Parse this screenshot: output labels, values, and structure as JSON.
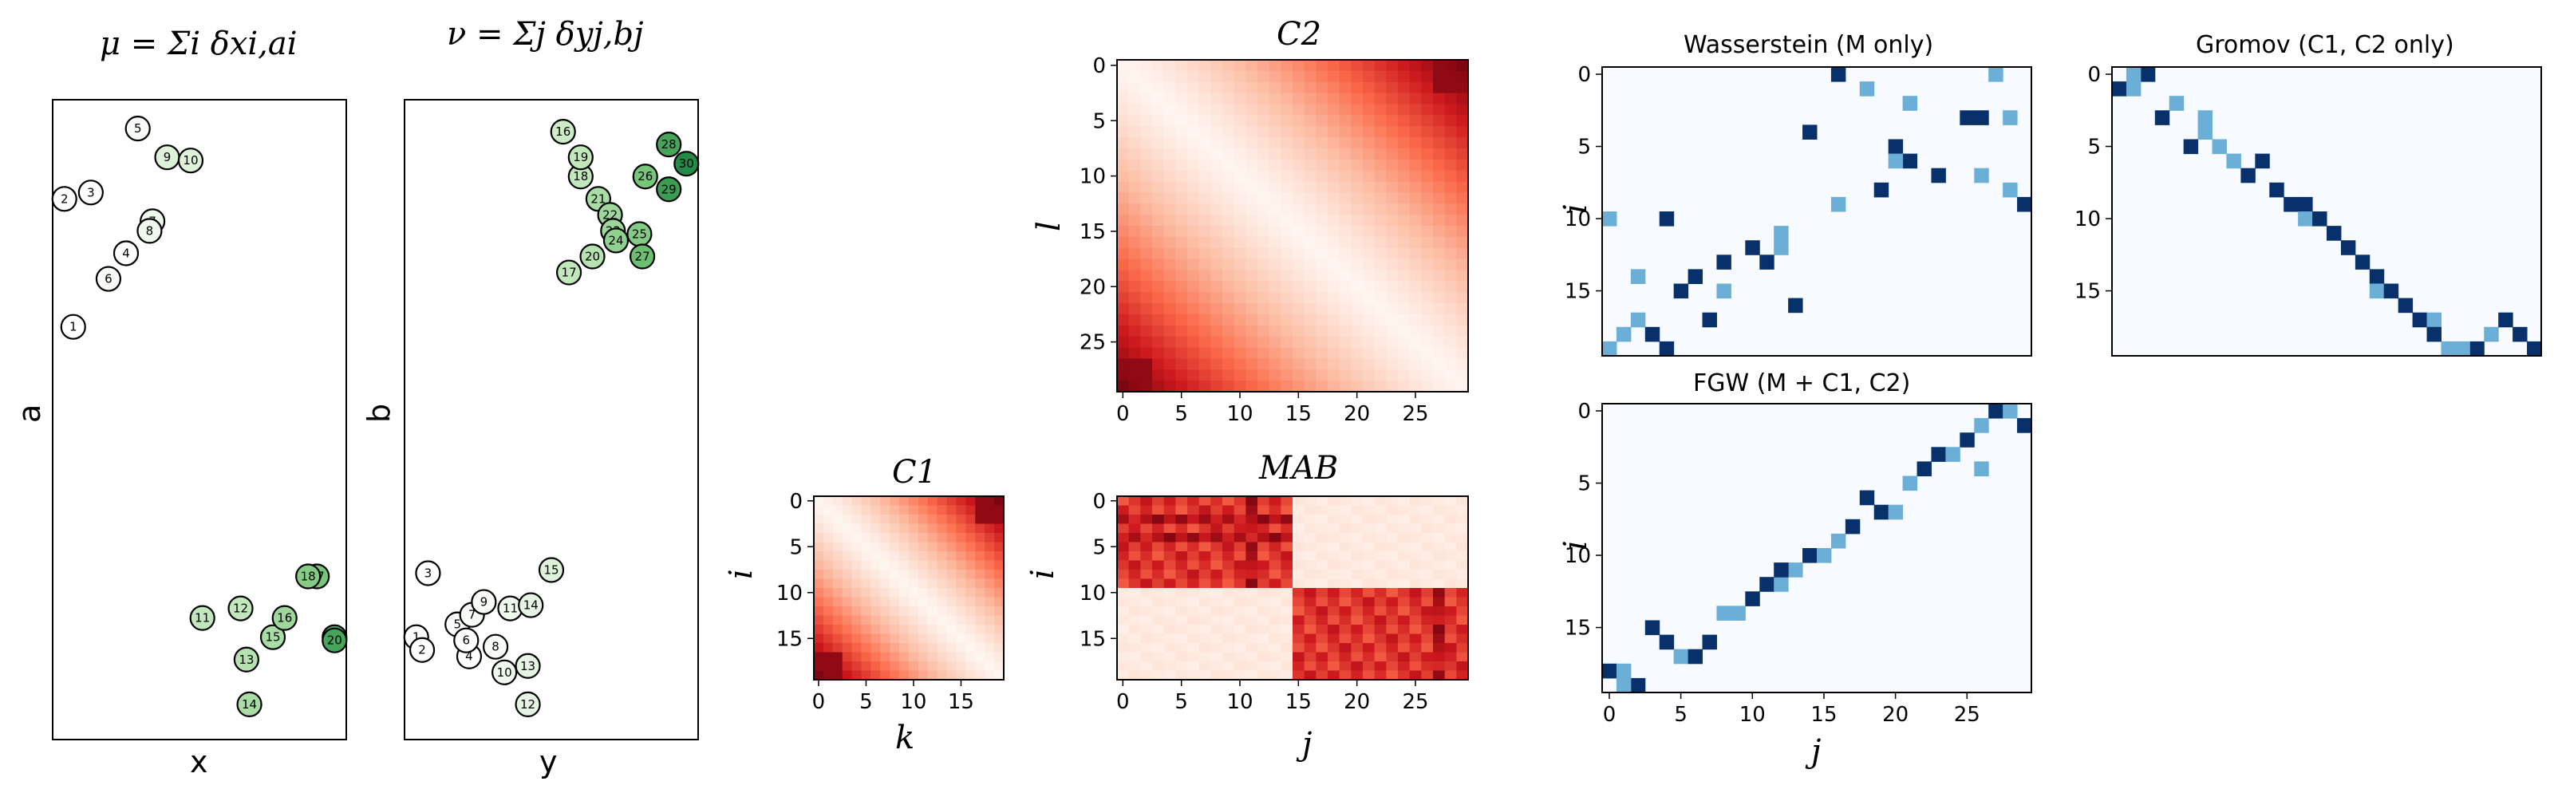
{
  "chart_data": [
    {
      "id": "mu",
      "type": "scatter",
      "title": "μ = Σi δxi,ai",
      "xlabel": "x",
      "ylabel": "a",
      "xlim": [
        0,
        10
      ],
      "ylim": [
        0,
        20
      ],
      "points": [
        {
          "label": "1",
          "x": 0.7,
          "y": 12.9,
          "shade": 0.0
        },
        {
          "label": "2",
          "x": 0.4,
          "y": 16.9,
          "shade": 0.0
        },
        {
          "label": "3",
          "x": 1.3,
          "y": 17.1,
          "shade": 0.0
        },
        {
          "label": "4",
          "x": 2.5,
          "y": 15.2,
          "shade": 0.0
        },
        {
          "label": "5",
          "x": 2.9,
          "y": 19.1,
          "shade": 0.05
        },
        {
          "label": "6",
          "x": 1.9,
          "y": 14.4,
          "shade": 0.05
        },
        {
          "label": "7",
          "x": 3.4,
          "y": 16.2,
          "shade": 0.1
        },
        {
          "label": "8",
          "x": 3.3,
          "y": 15.9,
          "shade": 0.1
        },
        {
          "label": "9",
          "x": 3.9,
          "y": 18.2,
          "shade": 0.2
        },
        {
          "label": "10",
          "x": 4.7,
          "y": 18.1,
          "shade": 0.2
        },
        {
          "label": "11",
          "x": 5.1,
          "y": 3.8,
          "shade": 0.35
        },
        {
          "label": "12",
          "x": 6.4,
          "y": 4.1,
          "shade": 0.35
        },
        {
          "label": "13",
          "x": 6.6,
          "y": 2.5,
          "shade": 0.4
        },
        {
          "label": "14",
          "x": 6.7,
          "y": 1.1,
          "shade": 0.45
        },
        {
          "label": "15",
          "x": 7.5,
          "y": 3.2,
          "shade": 0.45
        },
        {
          "label": "16",
          "x": 7.9,
          "y": 3.8,
          "shade": 0.5
        },
        {
          "label": "17",
          "x": 9.0,
          "y": 5.1,
          "shade": 0.65
        },
        {
          "label": "18",
          "x": 8.7,
          "y": 5.1,
          "shade": 0.6
        },
        {
          "label": "19",
          "x": 9.6,
          "y": 3.2,
          "shade": 0.8
        },
        {
          "label": "20",
          "x": 9.6,
          "y": 3.1,
          "shade": 0.85
        }
      ]
    },
    {
      "id": "nu",
      "type": "scatter",
      "title": "ν = Σj δyj,bj",
      "xlabel": "y",
      "ylabel": "b",
      "xlim": [
        0,
        10
      ],
      "ylim": [
        0,
        20
      ],
      "points": [
        {
          "label": "1",
          "x": 0.4,
          "y": 3.2,
          "shade": 0.0
        },
        {
          "label": "2",
          "x": 0.6,
          "y": 2.8,
          "shade": 0.0
        },
        {
          "label": "3",
          "x": 0.8,
          "y": 5.2,
          "shade": 0.0
        },
        {
          "label": "4",
          "x": 2.2,
          "y": 2.6,
          "shade": 0.0
        },
        {
          "label": "5",
          "x": 1.8,
          "y": 3.6,
          "shade": 0.0
        },
        {
          "label": "6",
          "x": 2.1,
          "y": 3.1,
          "shade": 0.0
        },
        {
          "label": "7",
          "x": 2.3,
          "y": 3.9,
          "shade": 0.05
        },
        {
          "label": "8",
          "x": 3.1,
          "y": 2.9,
          "shade": 0.05
        },
        {
          "label": "9",
          "x": 2.7,
          "y": 4.3,
          "shade": 0.05
        },
        {
          "label": "10",
          "x": 3.4,
          "y": 2.1,
          "shade": 0.1
        },
        {
          "label": "11",
          "x": 3.6,
          "y": 4.1,
          "shade": 0.1
        },
        {
          "label": "12",
          "x": 4.2,
          "y": 1.1,
          "shade": 0.15
        },
        {
          "label": "13",
          "x": 4.2,
          "y": 2.3,
          "shade": 0.15
        },
        {
          "label": "14",
          "x": 4.3,
          "y": 4.2,
          "shade": 0.15
        },
        {
          "label": "15",
          "x": 5.0,
          "y": 5.3,
          "shade": 0.2
        },
        {
          "label": "16",
          "x": 5.4,
          "y": 19.0,
          "shade": 0.3
        },
        {
          "label": "17",
          "x": 5.6,
          "y": 14.6,
          "shade": 0.35
        },
        {
          "label": "18",
          "x": 6.0,
          "y": 17.6,
          "shade": 0.35
        },
        {
          "label": "19",
          "x": 6.0,
          "y": 18.2,
          "shade": 0.35
        },
        {
          "label": "20",
          "x": 6.4,
          "y": 15.1,
          "shade": 0.4
        },
        {
          "label": "21",
          "x": 6.6,
          "y": 16.9,
          "shade": 0.45
        },
        {
          "label": "22",
          "x": 7.0,
          "y": 16.4,
          "shade": 0.5
        },
        {
          "label": "23",
          "x": 7.1,
          "y": 15.9,
          "shade": 0.5
        },
        {
          "label": "24",
          "x": 7.2,
          "y": 15.6,
          "shade": 0.55
        },
        {
          "label": "25",
          "x": 8.0,
          "y": 15.8,
          "shade": 0.6
        },
        {
          "label": "26",
          "x": 8.2,
          "y": 17.6,
          "shade": 0.65
        },
        {
          "label": "27",
          "x": 8.1,
          "y": 15.1,
          "shade": 0.7
        },
        {
          "label": "28",
          "x": 9.0,
          "y": 18.6,
          "shade": 0.85
        },
        {
          "label": "29",
          "x": 9.0,
          "y": 17.2,
          "shade": 0.9
        },
        {
          "label": "30",
          "x": 9.6,
          "y": 18.0,
          "shade": 1.0
        }
      ]
    },
    {
      "id": "C1",
      "type": "heatmap",
      "title": "C1",
      "xlabel": "k",
      "ylabel": "i",
      "rows": 20,
      "cols": 20,
      "colormap": "Reds",
      "xticks": [
        "0",
        "5",
        "10",
        "15"
      ],
      "yticks": [
        "0",
        "5",
        "10",
        "15"
      ],
      "generator": "distance-matrix",
      "split": 10
    },
    {
      "id": "C2",
      "type": "heatmap",
      "title": "C2",
      "xlabel": "",
      "ylabel": "l",
      "rows": 30,
      "cols": 30,
      "colormap": "Reds",
      "xticks": [
        "0",
        "5",
        "10",
        "15",
        "20",
        "25"
      ],
      "yticks": [
        "0",
        "5",
        "10",
        "15",
        "20",
        "25"
      ],
      "generator": "distance-matrix",
      "split": 15
    },
    {
      "id": "MAB",
      "type": "heatmap",
      "title": "MAB",
      "xlabel": "j",
      "ylabel": "i",
      "rows": 20,
      "cols": 30,
      "colormap": "Reds",
      "xticks": [
        "0",
        "5",
        "10",
        "15",
        "20",
        "25"
      ],
      "yticks": [
        "0",
        "5",
        "10",
        "15"
      ],
      "generator": "block",
      "row_split": 10,
      "col_split": 15
    },
    {
      "id": "W",
      "type": "heatmap",
      "title": "Wasserstein (M only)",
      "xlabel": "",
      "ylabel": "i",
      "rows": 20,
      "cols": 30,
      "colormap": "Blues",
      "xticks": [],
      "yticks": [
        "0",
        "5",
        "10",
        "15"
      ],
      "cells": [
        [
          0,
          16,
          1
        ],
        [
          0,
          27,
          0.5
        ],
        [
          1,
          18,
          0.5
        ],
        [
          2,
          21,
          0.5
        ],
        [
          3,
          25,
          1
        ],
        [
          3,
          26,
          1
        ],
        [
          3,
          28,
          0.5
        ],
        [
          4,
          14,
          1
        ],
        [
          5,
          20,
          1
        ],
        [
          6,
          21,
          1
        ],
        [
          6,
          20,
          0.5
        ],
        [
          7,
          23,
          1
        ],
        [
          7,
          26,
          0.5
        ],
        [
          8,
          19,
          1
        ],
        [
          8,
          28,
          0.5
        ],
        [
          9,
          16,
          0.5
        ],
        [
          9,
          29,
          1
        ],
        [
          10,
          0,
          0.5
        ],
        [
          10,
          4,
          1
        ],
        [
          11,
          12,
          0.5
        ],
        [
          12,
          10,
          1
        ],
        [
          12,
          12,
          0.5
        ],
        [
          13,
          8,
          1
        ],
        [
          13,
          11,
          1
        ],
        [
          14,
          2,
          0.5
        ],
        [
          14,
          6,
          1
        ],
        [
          15,
          5,
          1
        ],
        [
          15,
          8,
          0.5
        ],
        [
          16,
          13,
          1
        ],
        [
          17,
          7,
          1
        ],
        [
          17,
          2,
          0.5
        ],
        [
          18,
          1,
          0.5
        ],
        [
          18,
          3,
          1
        ],
        [
          19,
          0,
          0.5
        ],
        [
          19,
          4,
          1
        ]
      ]
    },
    {
      "id": "G",
      "type": "heatmap",
      "title": "Gromov (C1, C2 only)",
      "xlabel": "",
      "ylabel": "",
      "rows": 20,
      "cols": 30,
      "colormap": "Blues",
      "xticks": [],
      "yticks": [
        "0",
        "5",
        "10",
        "15"
      ],
      "cells": [
        [
          0,
          2,
          1
        ],
        [
          0,
          1,
          0.5
        ],
        [
          1,
          0,
          1
        ],
        [
          1,
          1,
          0.5
        ],
        [
          2,
          4,
          0.5
        ],
        [
          3,
          3,
          1
        ],
        [
          3,
          6,
          0.5
        ],
        [
          4,
          6,
          0.5
        ],
        [
          5,
          5,
          1
        ],
        [
          5,
          7,
          0.5
        ],
        [
          6,
          8,
          0.5
        ],
        [
          6,
          10,
          1
        ],
        [
          7,
          9,
          1
        ],
        [
          8,
          11,
          1
        ],
        [
          9,
          12,
          1
        ],
        [
          9,
          13,
          1
        ],
        [
          10,
          13,
          0.5
        ],
        [
          10,
          14,
          1
        ],
        [
          11,
          15,
          1
        ],
        [
          12,
          16,
          1
        ],
        [
          13,
          17,
          1
        ],
        [
          14,
          18,
          1
        ],
        [
          15,
          18,
          0.5
        ],
        [
          15,
          19,
          1
        ],
        [
          16,
          20,
          1
        ],
        [
          17,
          21,
          1
        ],
        [
          17,
          22,
          0.5
        ],
        [
          18,
          22,
          1
        ],
        [
          19,
          23,
          0.5
        ],
        [
          19,
          25,
          1
        ],
        [
          19,
          24,
          0.5
        ],
        [
          18,
          26,
          0.5
        ],
        [
          17,
          27,
          1
        ],
        [
          18,
          28,
          1
        ],
        [
          19,
          29,
          1
        ]
      ]
    },
    {
      "id": "FGW",
      "type": "heatmap",
      "title": "FGW  (M + C1, C2)",
      "xlabel": "j",
      "ylabel": "i",
      "rows": 20,
      "cols": 30,
      "colormap": "Blues",
      "xticks": [
        "0",
        "5",
        "10",
        "15",
        "20",
        "25"
      ],
      "yticks": [
        "0",
        "5",
        "10",
        "15"
      ],
      "cells": [
        [
          0,
          27,
          1
        ],
        [
          0,
          28,
          0.5
        ],
        [
          1,
          26,
          0.5
        ],
        [
          1,
          29,
          1
        ],
        [
          2,
          25,
          1
        ],
        [
          3,
          23,
          1
        ],
        [
          3,
          24,
          0.5
        ],
        [
          4,
          22,
          1
        ],
        [
          4,
          26,
          0.5
        ],
        [
          5,
          21,
          0.5
        ],
        [
          6,
          18,
          1
        ],
        [
          7,
          19,
          1
        ],
        [
          7,
          20,
          0.5
        ],
        [
          8,
          17,
          1
        ],
        [
          9,
          16,
          0.5
        ],
        [
          10,
          14,
          1
        ],
        [
          10,
          15,
          0.5
        ],
        [
          11,
          13,
          0.5
        ],
        [
          12,
          11,
          1
        ],
        [
          13,
          10,
          1
        ],
        [
          14,
          9,
          0.5
        ],
        [
          15,
          3,
          1
        ],
        [
          16,
          4,
          1
        ],
        [
          17,
          5,
          0.5
        ],
        [
          17,
          6,
          1
        ],
        [
          18,
          0,
          1
        ],
        [
          18,
          1,
          0.5
        ],
        [
          19,
          2,
          1
        ],
        [
          19,
          1,
          0.5
        ],
        [
          16,
          7,
          1
        ],
        [
          14,
          8,
          0.5
        ],
        [
          12,
          12,
          0.5
        ],
        [
          11,
          12,
          1
        ]
      ]
    }
  ]
}
